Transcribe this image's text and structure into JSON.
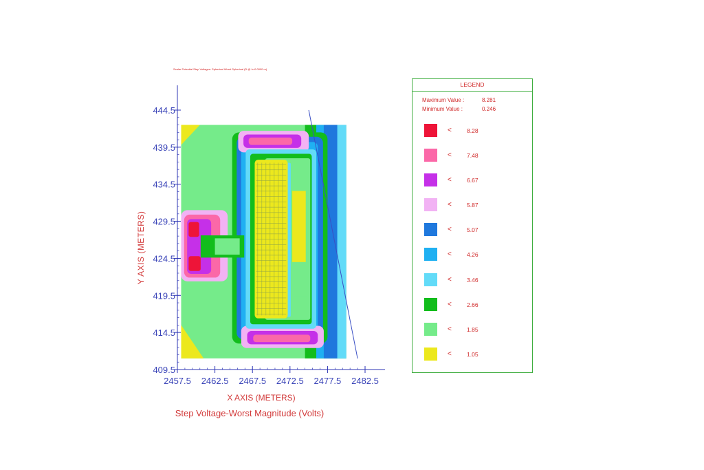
{
  "chart_data": {
    "type": "heatmap",
    "subtitle": "Scalar Potential Step Voltages: Spherical Worst Spherical (D @ h=0.0000 m)",
    "title": "Step Voltage-Worst Magnitude (Volts)",
    "xlabel": "X AXIS  (METERS)",
    "ylabel": "Y AXIS  (METERS)",
    "xlim": [
      2457.5,
      2482.5
    ],
    "ylim": [
      409.5,
      444.5
    ],
    "x_ticks": [
      "2457.5",
      "2462.5",
      "2467.5",
      "2472.5",
      "2477.5",
      "2482.5"
    ],
    "y_ticks": [
      "444.5",
      "439.5",
      "434.5",
      "429.5",
      "424.5",
      "419.5",
      "414.5",
      "409.5"
    ],
    "data_extent": {
      "x": [
        2458.0,
        2480.0
      ],
      "y": [
        411.0,
        442.5
      ]
    },
    "grid": false,
    "legend_position": "right",
    "legend": {
      "title": "LEGEND",
      "max_label": "Maximum Value :",
      "max_value": "8.281",
      "min_label": "Minimum Value :",
      "min_value": "0.246",
      "less_symbol": "<",
      "levels": [
        {
          "value": "8.28",
          "color": "#ee1438"
        },
        {
          "value": "7.48",
          "color": "#fb68a8"
        },
        {
          "value": "6.67",
          "color": "#c530e8"
        },
        {
          "value": "5.87",
          "color": "#f2b2f4"
        },
        {
          "value": "5.07",
          "color": "#1f78dd"
        },
        {
          "value": "4.26",
          "color": "#1fb0f2"
        },
        {
          "value": "3.46",
          "color": "#62dbf8"
        },
        {
          "value": "2.66",
          "color": "#12bd1c"
        },
        {
          "value": "1.85",
          "color": "#75eb8a"
        },
        {
          "value": "1.05",
          "color": "#ece81d"
        }
      ]
    },
    "reference_line": {
      "from": [
        2475.0,
        444.5
      ],
      "to": [
        2481.5,
        411.0
      ]
    }
  }
}
